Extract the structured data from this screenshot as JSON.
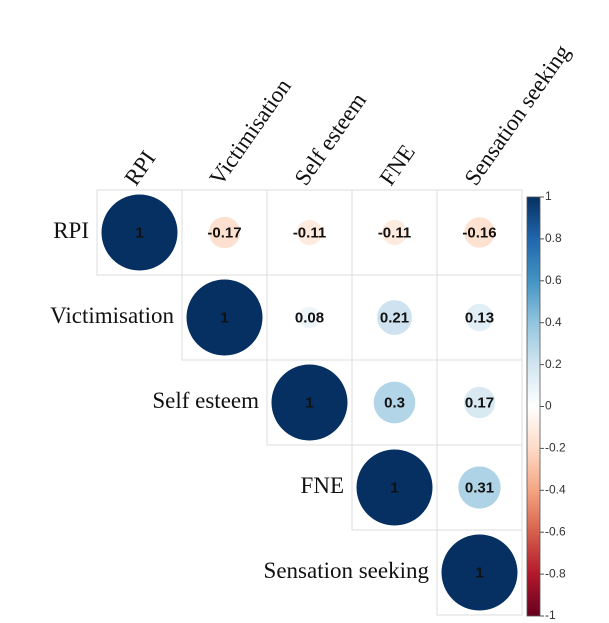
{
  "chart_data": {
    "type": "corrplot",
    "variables": [
      "RPI",
      "Victimisation",
      "Self esteem",
      "FNE",
      "Sensation seeking"
    ],
    "values": [
      [
        1,
        -0.17,
        -0.11,
        -0.11,
        -0.16
      ],
      [
        null,
        1,
        0.08,
        0.21,
        0.13
      ],
      [
        null,
        null,
        1,
        0.3,
        0.17
      ],
      [
        null,
        null,
        null,
        1,
        0.31
      ],
      [
        null,
        null,
        null,
        null,
        1
      ]
    ],
    "clim": [
      -1,
      1
    ],
    "cticks": [
      -1,
      -0.8,
      -0.6,
      -0.4,
      -0.2,
      0,
      0.2,
      0.4,
      0.6,
      0.8,
      1
    ],
    "colormap": [
      "#67001F",
      "#B2182B",
      "#D6604D",
      "#F4A582",
      "#FDDBC7",
      "#FFFFFF",
      "#D1E5F0",
      "#92C5DE",
      "#4393C3",
      "#2166AC",
      "#053061"
    ]
  }
}
